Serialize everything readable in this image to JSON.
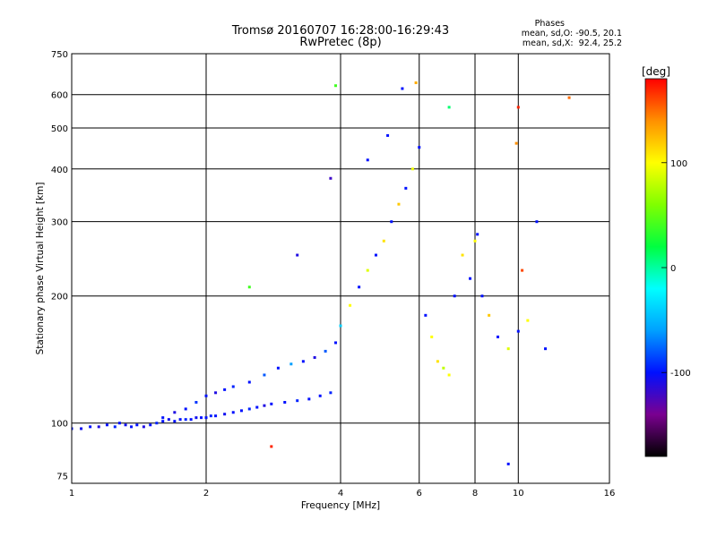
{
  "header": {
    "title_line1": "Tromsø 20160707 16:28:00-16:29:43",
    "title_line2": "RwPretec (8p)",
    "phases_title": "Phases",
    "phases_line1": "mean, sd,O: -90.5, 20.1",
    "phases_line2": "mean, sd,X:  92.4, 25.2"
  },
  "colorbar": {
    "unit": "[deg]",
    "ticks": [
      {
        "value": 100,
        "label": "100"
      },
      {
        "value": 0,
        "label": "0"
      },
      {
        "value": -100,
        "label": "-100"
      }
    ],
    "range": [
      -180,
      180
    ],
    "colormap": [
      "#000000",
      "#7a0090",
      "#0010ff",
      "#00a0ff",
      "#00ffff",
      "#00ff40",
      "#80ff00",
      "#ffff00",
      "#ff9000",
      "#ff0000"
    ]
  },
  "chart_data": {
    "type": "scatter",
    "title": "Tromsø 20160707 16:28:00-16:29:43",
    "subtitle": "RwPretec (8p)",
    "xlabel": "Frequency [MHz]",
    "ylabel": "Stationary phase Virtual Height [km]",
    "xscale": "log",
    "yscale": "log",
    "xlim": [
      1,
      16
    ],
    "ylim": [
      72,
      750
    ],
    "xticks": [
      1,
      2,
      4,
      6,
      8,
      10,
      16
    ],
    "yticks": [
      75,
      100,
      200,
      300,
      400,
      500,
      600,
      750
    ],
    "grid": true,
    "color_variable": "phase [deg]",
    "series": [
      {
        "values": [
          [
            1.0,
            97,
            -100
          ],
          [
            1.05,
            97,
            -105
          ],
          [
            1.1,
            98,
            -100
          ],
          [
            1.15,
            98,
            -110
          ],
          [
            1.2,
            99,
            -100
          ],
          [
            1.25,
            98,
            -95
          ],
          [
            1.28,
            100,
            -100
          ],
          [
            1.32,
            99,
            -105
          ],
          [
            1.36,
            98,
            -100
          ],
          [
            1.4,
            99,
            -100
          ],
          [
            1.45,
            98,
            -110
          ],
          [
            1.5,
            99,
            -100
          ],
          [
            1.55,
            100,
            -95
          ],
          [
            1.6,
            101,
            -100
          ],
          [
            1.65,
            102,
            -105
          ],
          [
            1.7,
            101,
            -100
          ],
          [
            1.75,
            102,
            -100
          ],
          [
            1.8,
            102,
            -95
          ],
          [
            1.85,
            102,
            -100
          ],
          [
            1.9,
            103,
            -105
          ],
          [
            1.95,
            103,
            -100
          ],
          [
            2.0,
            103,
            -100
          ],
          [
            2.05,
            104,
            -95
          ],
          [
            2.1,
            104,
            -100
          ],
          [
            2.2,
            105,
            -105
          ],
          [
            2.3,
            106,
            -100
          ],
          [
            2.4,
            107,
            -100
          ],
          [
            2.5,
            108,
            -95
          ],
          [
            2.6,
            109,
            -100
          ],
          [
            2.7,
            110,
            -110
          ],
          [
            2.8,
            111,
            -100
          ],
          [
            3.0,
            112,
            -100
          ],
          [
            3.2,
            113,
            -95
          ],
          [
            3.4,
            114,
            -100
          ],
          [
            3.6,
            116,
            -100
          ],
          [
            3.8,
            118,
            -95
          ]
        ]
      },
      {
        "values": [
          [
            1.6,
            103,
            -100
          ],
          [
            1.7,
            106,
            -110
          ],
          [
            1.8,
            108,
            -100
          ],
          [
            1.9,
            112,
            -90
          ],
          [
            2.0,
            116,
            -100
          ],
          [
            2.1,
            118,
            -110
          ],
          [
            2.2,
            120,
            -100
          ],
          [
            2.3,
            122,
            -95
          ],
          [
            2.5,
            125,
            -100
          ],
          [
            2.7,
            130,
            -80
          ],
          [
            2.9,
            135,
            -100
          ],
          [
            3.1,
            138,
            -60
          ],
          [
            3.3,
            140,
            -100
          ],
          [
            3.5,
            143,
            -110
          ],
          [
            3.7,
            148,
            -80
          ],
          [
            3.9,
            155,
            -100
          ],
          [
            4.0,
            170,
            -40
          ],
          [
            4.2,
            190,
            100
          ],
          [
            4.4,
            210,
            -100
          ],
          [
            4.6,
            230,
            90
          ],
          [
            4.8,
            250,
            -100
          ],
          [
            5.0,
            270,
            110
          ],
          [
            5.2,
            300,
            -100
          ],
          [
            5.4,
            330,
            120
          ],
          [
            5.6,
            360,
            -100
          ],
          [
            5.8,
            400,
            95
          ],
          [
            6.0,
            450,
            -100
          ],
          [
            6.2,
            180,
            -100
          ],
          [
            6.4,
            160,
            100
          ],
          [
            6.6,
            140,
            110
          ],
          [
            6.8,
            135,
            80
          ],
          [
            7.0,
            130,
            100
          ],
          [
            7.2,
            200,
            -100
          ],
          [
            7.5,
            250,
            110
          ],
          [
            7.8,
            220,
            -100
          ],
          [
            8.0,
            270,
            100
          ],
          [
            8.3,
            200,
            -100
          ],
          [
            8.6,
            180,
            120
          ],
          [
            9.0,
            160,
            -100
          ],
          [
            9.5,
            150,
            90
          ],
          [
            10.0,
            165,
            -100
          ],
          [
            10.5,
            175,
            100
          ],
          [
            11.0,
            300,
            -100
          ],
          [
            11.5,
            150,
            -100
          ]
        ]
      },
      {
        "values": [
          [
            2.8,
            88,
            170
          ],
          [
            3.2,
            250,
            -110
          ],
          [
            2.5,
            210,
            40
          ],
          [
            3.9,
            630,
            40
          ],
          [
            5.5,
            620,
            -100
          ],
          [
            5.9,
            640,
            130
          ],
          [
            7.0,
            560,
            10
          ],
          [
            9.5,
            80,
            -100
          ],
          [
            13.0,
            590,
            150
          ],
          [
            9.9,
            460,
            140
          ],
          [
            10.0,
            560,
            170
          ],
          [
            3.8,
            380,
            -120
          ],
          [
            4.6,
            420,
            -100
          ],
          [
            5.1,
            480,
            -100
          ],
          [
            8.1,
            280,
            -100
          ],
          [
            10.2,
            230,
            160
          ]
        ]
      }
    ]
  }
}
